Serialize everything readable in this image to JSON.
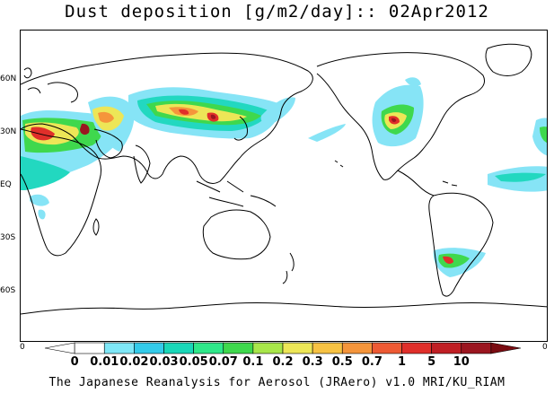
{
  "title": "Dust deposition [g/m2/day]:: 02Apr2012",
  "footer": "The Japanese Reanalysis for Aerosol (JRAero) v1.0 MRI/KU_RIAM",
  "lat_labels": [
    "60N",
    "30N",
    "EQ",
    "30S",
    "60S"
  ],
  "colorbar": {
    "end_left": "0",
    "end_right": "0",
    "levels": [
      "0",
      "0.01",
      "0.02",
      "0.03",
      "0.05",
      "0.07",
      "0.1",
      "0.2",
      "0.3",
      "0.5",
      "0.7",
      "1",
      "5",
      "10"
    ],
    "colors": [
      "#ffffff",
      "#ffffff",
      "#7fe7f7",
      "#34cbea",
      "#1ad7b8",
      "#2fe88a",
      "#3fd84d",
      "#a8e64a",
      "#ede657",
      "#f7c243",
      "#f5953b",
      "#ee5a34",
      "#e02f2a",
      "#c01f24",
      "#9b1620",
      "#7a0c12"
    ]
  },
  "colors": {
    "coast": "#000000",
    "light": "#86e4f6",
    "mid": "#22d8c0",
    "green": "#3fd84d",
    "yellow": "#ede657",
    "orange": "#f5953b",
    "red": "#e02f2a",
    "dark": "#9b1620"
  }
}
